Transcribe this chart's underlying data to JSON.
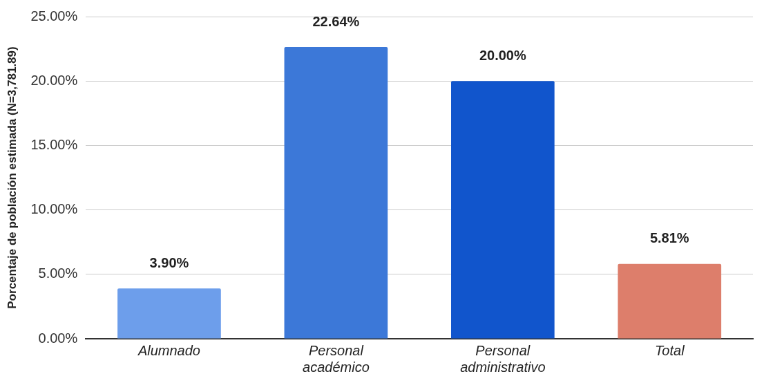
{
  "chart_data": {
    "type": "bar",
    "ylabel": "Porcentaje de población estimada (N=3,781.89)",
    "categories": [
      "Alumnado",
      "Personal académico",
      "Personal administrativo",
      "Total"
    ],
    "values": [
      3.9,
      22.64,
      20.0,
      5.81
    ],
    "colors": [
      "#6d9eeb",
      "#3c78d8",
      "#1155cc",
      "#dd7e6b"
    ],
    "value_labels": [
      "3.90%",
      "22.64%",
      "20.00%",
      "5.81%"
    ],
    "ylim": [
      0,
      25
    ],
    "yticks": [
      {
        "value": 0,
        "label": "0.00%"
      },
      {
        "value": 5,
        "label": "5.00%"
      },
      {
        "value": 10,
        "label": "10.00%"
      },
      {
        "value": 15,
        "label": "15.00%"
      },
      {
        "value": 20,
        "label": "20.00%"
      },
      {
        "value": 25,
        "label": "25.00%"
      }
    ],
    "grid": "y",
    "legend": false
  }
}
